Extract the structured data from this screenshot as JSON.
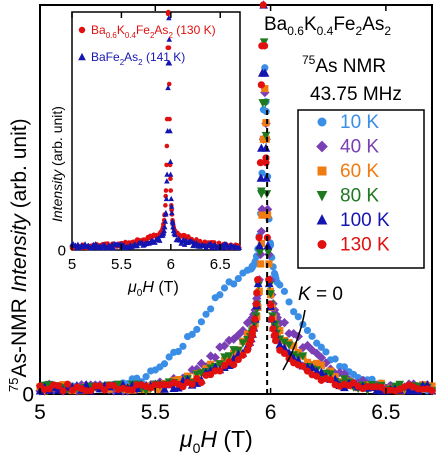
{
  "chart_data": [
    {
      "id": "main",
      "type": "scatter",
      "title_lines": [
        "Ba0.6K0.4Fe2As2",
        "75As NMR",
        "43.75 MHz"
      ],
      "title_parts": {
        "compound": {
          "a": "Ba",
          "a_sub": "0.6",
          "b": "K",
          "b_sub": "0.4",
          "c": "Fe",
          "c_sub": "2",
          "d": "As",
          "d_sub": "2"
        },
        "nmr": {
          "sup": "75",
          "text": "As NMR"
        },
        "freq": "43.75 MHz"
      },
      "xlabel": {
        "mu": "μ",
        "sub": "0",
        "rest": "H (T)"
      },
      "ylabel": {
        "sup": "75",
        "rest": "As-NMR ",
        "italic": "Intensity",
        "unit": " (arb. unit)"
      },
      "xlim": [
        5.0,
        6.7
      ],
      "ylim": [
        0,
        1.0
      ],
      "xticks": [
        5,
        5.5,
        6,
        6.5
      ],
      "xtick_labels": [
        "5",
        "5.5",
        "6",
        "6.5"
      ],
      "yticks": [
        0
      ],
      "ytick_labels": [
        "0"
      ],
      "reference_line": {
        "x": 5.985,
        "style": "dashed",
        "label": "K = 0"
      },
      "legend": {
        "placement": "right",
        "entries": [
          "10 K",
          "40 K",
          "60 K",
          "80 K",
          "100 K",
          "130 K"
        ]
      },
      "series": [
        {
          "name": "10 K",
          "marker": "circle",
          "color": "#3a8ee6",
          "peak": 5.975,
          "amp": 0.55,
          "wing": 0.29,
          "wing_width": 0.3,
          "wing_shift": -0.06
        },
        {
          "name": "40 K",
          "marker": "diamond",
          "color": "#7b3fb5",
          "peak": 5.975,
          "amp": 0.6,
          "wing": 0.165,
          "wing_width": 0.26,
          "wing_shift": 0.0
        },
        {
          "name": "60 K",
          "marker": "square",
          "color": "#f07b10",
          "peak": 5.975,
          "amp": 0.65,
          "wing": 0.125,
          "wing_width": 0.25,
          "wing_shift": 0.0
        },
        {
          "name": "80 K",
          "marker": "triangle-down",
          "color": "#1f7a1f",
          "peak": 5.972,
          "amp": 0.78,
          "wing": 0.115,
          "wing_width": 0.24,
          "wing_shift": 0.0
        },
        {
          "name": "100 K",
          "marker": "triangle-up",
          "color": "#1515b0",
          "peak": 5.97,
          "amp": 0.9,
          "wing": 0.095,
          "wing_width": 0.23,
          "wing_shift": 0.0
        },
        {
          "name": "130 K",
          "marker": "circle",
          "color": "#e01010",
          "peak": 5.968,
          "amp": 1.0,
          "wing": 0.085,
          "wing_width": 0.22,
          "wing_shift": 0.0
        }
      ]
    },
    {
      "id": "inset",
      "type": "scatter",
      "xlabel": {
        "mu": "μ",
        "sub": "0",
        "rest": "H (T)"
      },
      "ylabel": {
        "italic": "Intensity",
        "unit": " (arb. unit)"
      },
      "xlim": [
        5.0,
        6.7
      ],
      "ylim": [
        0,
        1.0
      ],
      "xticks": [
        5,
        5.5,
        6,
        6.5
      ],
      "xtick_labels": [
        "5",
        "5.5",
        "6",
        "6.5"
      ],
      "yticks": [
        0
      ],
      "ytick_labels": [
        "0"
      ],
      "legend": {
        "placement": "top-left"
      },
      "series": [
        {
          "name": "Ba0.6K0.4Fe2As2 (130 K)",
          "name_parts": {
            "a": "Ba",
            "a_sub": "0.6",
            "b": "K",
            "b_sub": "0.4",
            "c": "Fe",
            "c_sub": "2",
            "d": "As",
            "d_sub": "2",
            "tail": " (130 K)"
          },
          "marker": "circle",
          "color": "#e01010",
          "peak": 5.975,
          "amp": 1.0,
          "wing": 0.04,
          "wing_width": 0.35,
          "wing_shift": 0.0
        },
        {
          "name": "BaFe2As2 (141 K)",
          "name_parts": {
            "a": "BaFe",
            "a_sub": "2",
            "b": "As",
            "b_sub": "2",
            "tail": " (141 K)"
          },
          "marker": "triangle-up",
          "color": "#1515b0",
          "peak": 5.98,
          "amp": 0.95,
          "wing": 0.015,
          "wing_width": 0.35,
          "wing_shift": 0.0
        }
      ]
    }
  ]
}
